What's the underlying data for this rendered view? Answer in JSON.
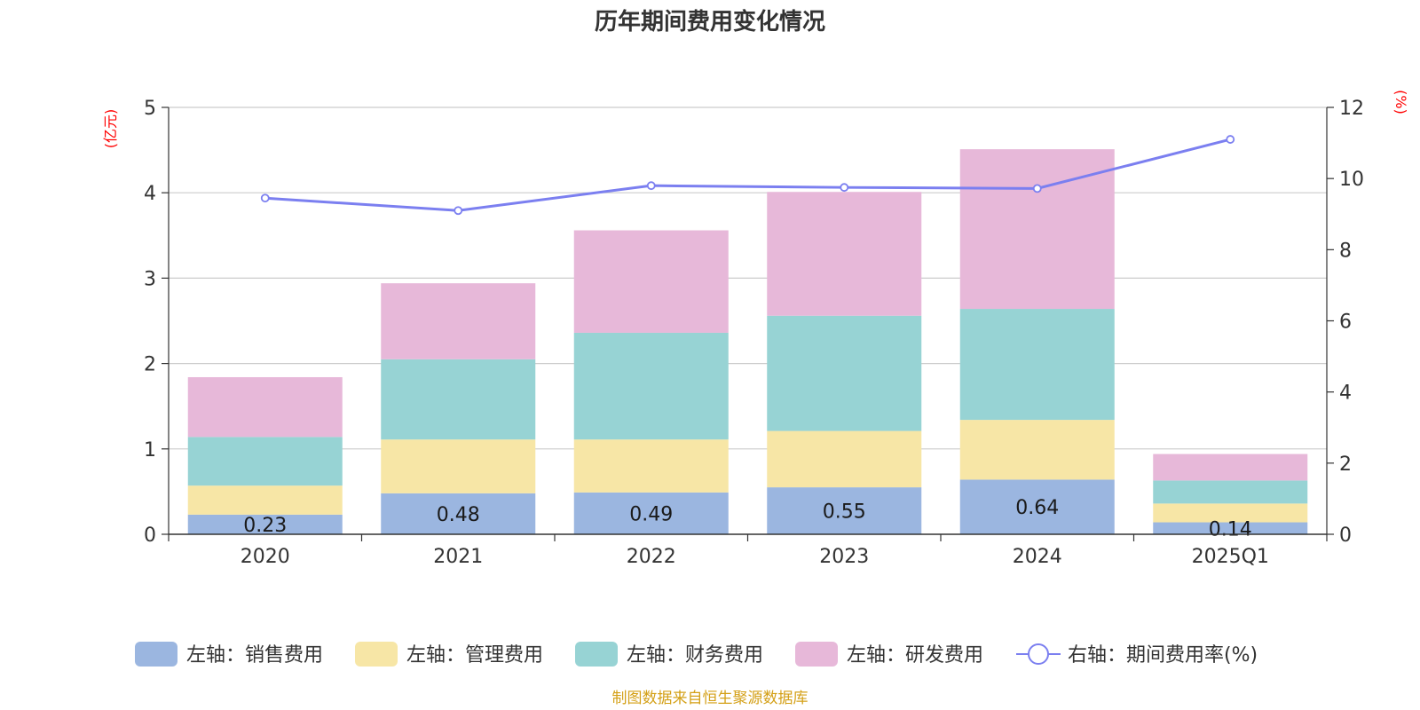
{
  "chart_data": {
    "type": "bar",
    "title": "历年期间费用变化情况",
    "categories": [
      "2020",
      "2021",
      "2022",
      "2023",
      "2024",
      "2025Q1"
    ],
    "left_axis": {
      "unit": "(亿元)",
      "ylim": [
        0,
        5
      ],
      "ticks": [
        "0",
        "1",
        "2",
        "3",
        "4",
        "5"
      ]
    },
    "right_axis": {
      "unit": "(%)",
      "ylim": [
        0,
        12
      ],
      "ticks": [
        "0",
        "2",
        "4",
        "6",
        "8",
        "10",
        "12"
      ]
    },
    "series": [
      {
        "name": "左轴：销售费用",
        "axis": "left",
        "type": "bar",
        "color": "#9bb6e0",
        "values": [
          0.23,
          0.48,
          0.49,
          0.55,
          0.64,
          0.14
        ],
        "labels": [
          "0.23",
          "0.48",
          "0.49",
          "0.55",
          "0.64",
          "0.14"
        ]
      },
      {
        "name": "左轴：管理费用",
        "axis": "left",
        "type": "bar",
        "color": "#f7e6a6",
        "values": [
          0.34,
          0.63,
          0.62,
          0.66,
          0.7,
          0.22
        ]
      },
      {
        "name": "左轴：财务费用",
        "axis": "left",
        "type": "bar",
        "color": "#97d3d4",
        "values": [
          0.57,
          0.94,
          1.25,
          1.35,
          1.3,
          0.27
        ]
      },
      {
        "name": "左轴：研发费用",
        "axis": "left",
        "type": "bar",
        "color": "#e7b8d9",
        "values": [
          0.7,
          0.89,
          1.2,
          1.45,
          1.87,
          0.31
        ]
      },
      {
        "name": "右轴：期间费用率(%)",
        "axis": "right",
        "type": "line",
        "color": "#7b7ff0",
        "values": [
          9.45,
          9.1,
          9.8,
          9.75,
          9.72,
          11.1
        ]
      }
    ],
    "grid": true,
    "legend_position": "bottom",
    "source": "制图数据来自恒生聚源数据库"
  }
}
